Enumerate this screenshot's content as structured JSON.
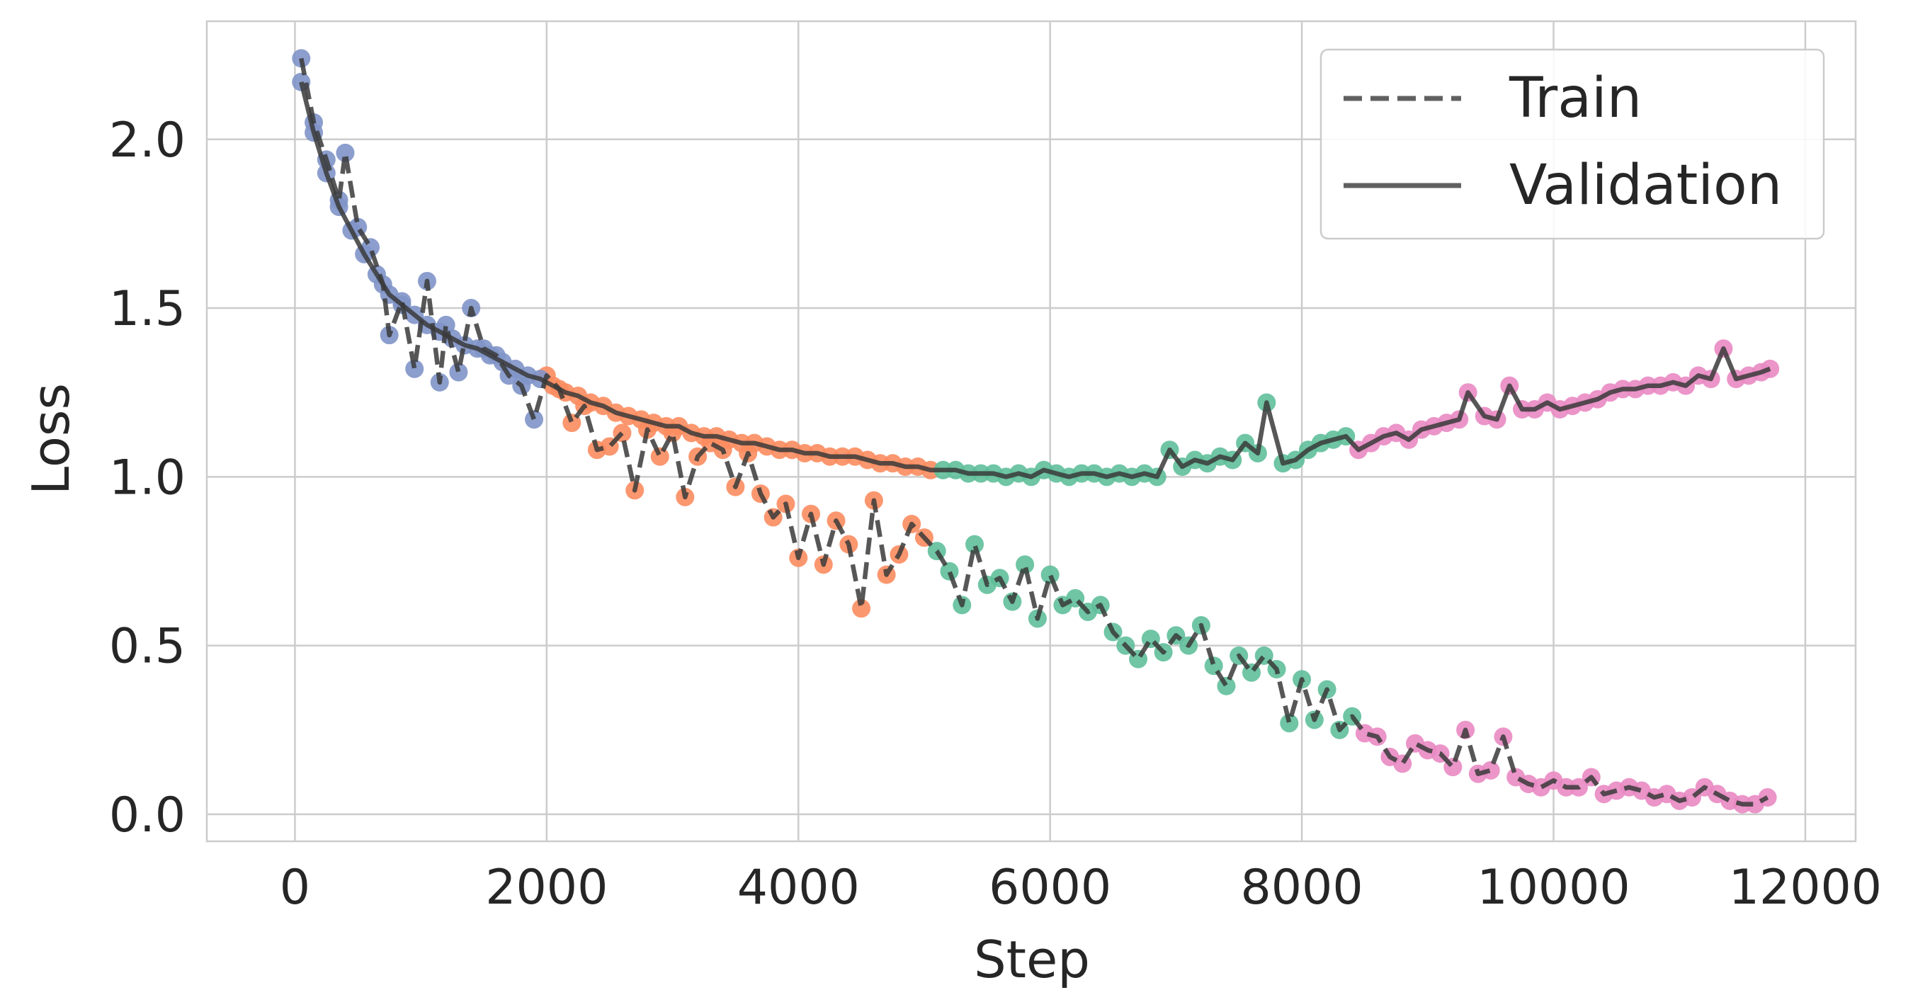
{
  "chart_data": {
    "type": "line",
    "xlabel": "Step",
    "ylabel": "Loss",
    "xlim": [
      -700,
      12400
    ],
    "ylim": [
      -0.08,
      2.35
    ],
    "xticks": [
      0,
      2000,
      4000,
      6000,
      8000,
      10000,
      12000
    ],
    "yticks": [
      0.0,
      0.5,
      1.0,
      1.5,
      2.0
    ],
    "xtick_labels": [
      "0",
      "2000",
      "4000",
      "6000",
      "8000",
      "10000",
      "12000"
    ],
    "ytick_labels": [
      "0.0",
      "0.5",
      "1.0",
      "1.5",
      "2.0"
    ],
    "grid": true,
    "legend": {
      "position": "top-right",
      "entries": [
        {
          "label": "Train",
          "style": "dashed"
        },
        {
          "label": "Validation",
          "style": "solid"
        }
      ]
    },
    "line_color": "#3a3a3a",
    "phase_colors": [
      "#7f93c8",
      "#fb8c5f",
      "#5fbf9a",
      "#e98ac3"
    ],
    "series": [
      {
        "name": "Train",
        "x": [
          50,
          150,
          250,
          350,
          400,
          500,
          600,
          700,
          750,
          850,
          950,
          1050,
          1150,
          1200,
          1300,
          1400,
          1500,
          1600,
          1700,
          1800,
          1900,
          2000,
          2100,
          2200,
          2300,
          2400,
          2500,
          2600,
          2700,
          2800,
          2900,
          3000,
          3100,
          3200,
          3300,
          3400,
          3500,
          3600,
          3700,
          3800,
          3900,
          4000,
          4100,
          4200,
          4300,
          4400,
          4500,
          4600,
          4700,
          4800,
          4900,
          5000,
          5100,
          5200,
          5300,
          5400,
          5500,
          5600,
          5700,
          5800,
          5900,
          6000,
          6100,
          6200,
          6300,
          6400,
          6500,
          6600,
          6700,
          6800,
          6900,
          7000,
          7100,
          7200,
          7300,
          7400,
          7500,
          7600,
          7700,
          7800,
          7900,
          8000,
          8100,
          8200,
          8300,
          8400,
          8500,
          8600,
          8700,
          8800,
          8900,
          9000,
          9100,
          9200,
          9300,
          9400,
          9500,
          9600,
          9700,
          9800,
          9900,
          10000,
          10100,
          10200,
          10300,
          10400,
          10500,
          10600,
          10700,
          10800,
          10900,
          11000,
          11100,
          11200,
          11300,
          11400,
          11500,
          11600,
          11700
        ],
        "y": [
          2.24,
          2.05,
          1.94,
          1.82,
          1.96,
          1.74,
          1.68,
          1.57,
          1.42,
          1.52,
          1.32,
          1.58,
          1.28,
          1.45,
          1.31,
          1.5,
          1.38,
          1.36,
          1.3,
          1.27,
          1.17,
          1.3,
          1.26,
          1.16,
          1.21,
          1.08,
          1.09,
          1.13,
          0.96,
          1.14,
          1.06,
          1.13,
          0.94,
          1.06,
          1.1,
          1.08,
          0.97,
          1.07,
          0.95,
          0.88,
          0.92,
          0.76,
          0.89,
          0.74,
          0.87,
          0.8,
          0.61,
          0.93,
          0.71,
          0.77,
          0.86,
          0.82,
          0.78,
          0.72,
          0.62,
          0.8,
          0.68,
          0.7,
          0.63,
          0.74,
          0.58,
          0.71,
          0.62,
          0.64,
          0.6,
          0.62,
          0.54,
          0.5,
          0.46,
          0.52,
          0.48,
          0.53,
          0.5,
          0.56,
          0.44,
          0.38,
          0.47,
          0.42,
          0.47,
          0.43,
          0.27,
          0.4,
          0.28,
          0.37,
          0.25,
          0.29,
          0.24,
          0.23,
          0.17,
          0.15,
          0.21,
          0.19,
          0.18,
          0.14,
          0.25,
          0.12,
          0.13,
          0.23,
          0.11,
          0.09,
          0.08,
          0.1,
          0.08,
          0.08,
          0.11,
          0.06,
          0.07,
          0.08,
          0.07,
          0.05,
          0.06,
          0.04,
          0.05,
          0.08,
          0.06,
          0.04,
          0.03,
          0.03,
          0.05
        ]
      },
      {
        "name": "Validation",
        "x": [
          50,
          150,
          250,
          350,
          450,
          550,
          650,
          750,
          850,
          950,
          1050,
          1150,
          1250,
          1350,
          1450,
          1550,
          1650,
          1750,
          1850,
          1950,
          2050,
          2150,
          2250,
          2350,
          2450,
          2550,
          2650,
          2750,
          2850,
          2950,
          3050,
          3150,
          3250,
          3350,
          3450,
          3550,
          3650,
          3750,
          3850,
          3950,
          4050,
          4150,
          4250,
          4350,
          4450,
          4550,
          4650,
          4750,
          4850,
          4950,
          5050,
          5150,
          5250,
          5350,
          5450,
          5550,
          5650,
          5750,
          5850,
          5950,
          6050,
          6150,
          6250,
          6350,
          6450,
          6550,
          6650,
          6750,
          6850,
          6950,
          7050,
          7150,
          7250,
          7350,
          7450,
          7550,
          7650,
          7720,
          7850,
          7950,
          8050,
          8150,
          8250,
          8350,
          8450,
          8550,
          8650,
          8750,
          8850,
          8950,
          9050,
          9150,
          9250,
          9320,
          9450,
          9550,
          9650,
          9750,
          9850,
          9950,
          10050,
          10150,
          10250,
          10350,
          10450,
          10550,
          10650,
          10750,
          10850,
          10950,
          11050,
          11150,
          11250,
          11350,
          11450,
          11550,
          11650,
          11720
        ],
        "y": [
          2.17,
          2.02,
          1.9,
          1.8,
          1.73,
          1.66,
          1.6,
          1.54,
          1.51,
          1.48,
          1.45,
          1.43,
          1.41,
          1.39,
          1.38,
          1.36,
          1.34,
          1.32,
          1.3,
          1.29,
          1.27,
          1.25,
          1.24,
          1.22,
          1.21,
          1.19,
          1.18,
          1.17,
          1.16,
          1.15,
          1.15,
          1.13,
          1.12,
          1.12,
          1.11,
          1.1,
          1.1,
          1.09,
          1.08,
          1.08,
          1.07,
          1.07,
          1.06,
          1.06,
          1.06,
          1.05,
          1.04,
          1.04,
          1.03,
          1.03,
          1.02,
          1.02,
          1.02,
          1.01,
          1.01,
          1.01,
          1.0,
          1.01,
          1.0,
          1.02,
          1.01,
          1.0,
          1.01,
          1.01,
          1.0,
          1.01,
          1.0,
          1.01,
          1.0,
          1.08,
          1.03,
          1.05,
          1.04,
          1.06,
          1.05,
          1.1,
          1.07,
          1.22,
          1.04,
          1.05,
          1.08,
          1.1,
          1.11,
          1.12,
          1.08,
          1.1,
          1.12,
          1.13,
          1.11,
          1.14,
          1.15,
          1.16,
          1.17,
          1.25,
          1.18,
          1.17,
          1.27,
          1.2,
          1.2,
          1.22,
          1.2,
          1.21,
          1.22,
          1.23,
          1.25,
          1.26,
          1.26,
          1.27,
          1.27,
          1.28,
          1.27,
          1.3,
          1.29,
          1.38,
          1.29,
          1.3,
          1.31,
          1.32
        ]
      }
    ]
  }
}
